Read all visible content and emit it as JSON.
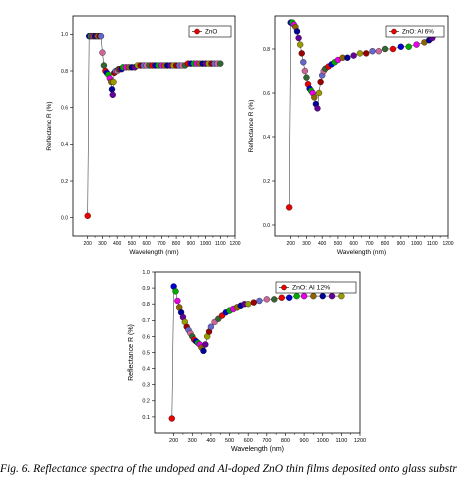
{
  "caption": "Fig. 6. Reflectance spectra of the undoped and Al-doped ZnO thin films deposited onto glass substr",
  "chart_data": [
    {
      "type": "scatter",
      "title": "",
      "legend": "ZnO",
      "legend_position": "top-right",
      "xlabel": "Wavelength (nm)",
      "ylabel": "Reflectanc R (%)",
      "xlim": [
        100,
        1200
      ],
      "ylim": [
        -0.1,
        1.1
      ],
      "xticks": [
        200,
        300,
        400,
        500,
        600,
        700,
        800,
        900,
        1000,
        1100,
        1200
      ],
      "yticks": [
        0.0,
        0.2,
        0.4,
        0.6,
        0.8,
        1.0
      ],
      "ytick_labels": [
        "0.0",
        "0.2",
        "0.4",
        "0.6",
        "0.8",
        "1.0"
      ],
      "grid": false,
      "marker_colors": [
        "#e60000",
        "#0000cc",
        "#00aa00",
        "#e600e6",
        "#8c6400",
        "#000099",
        "#660099",
        "#999900",
        "#990000",
        "#6666cc",
        "#cc6699",
        "#336633"
      ],
      "series": [
        {
          "x": [
            200,
            210,
            220,
            230,
            240,
            250,
            260,
            270,
            280,
            290,
            300,
            310,
            320,
            330,
            340,
            350,
            360,
            365,
            370,
            375,
            380,
            390,
            400,
            410,
            420,
            430,
            440,
            460,
            480,
            500,
            520,
            540,
            560,
            580,
            600,
            620,
            640,
            660,
            680,
            700,
            720,
            740,
            760,
            780,
            800,
            820,
            840,
            860,
            880,
            900,
            920,
            940,
            960,
            980,
            1000,
            1020,
            1040,
            1060,
            1080,
            1100
          ],
          "y": [
            0.01,
            0.99,
            0.99,
            0.99,
            0.99,
            0.99,
            0.99,
            0.99,
            0.99,
            0.99,
            0.9,
            0.83,
            0.8,
            0.79,
            0.78,
            0.76,
            0.74,
            0.7,
            0.67,
            0.74,
            0.79,
            0.8,
            0.8,
            0.81,
            0.81,
            0.81,
            0.82,
            0.82,
            0.82,
            0.82,
            0.82,
            0.83,
            0.83,
            0.83,
            0.83,
            0.83,
            0.83,
            0.83,
            0.83,
            0.83,
            0.83,
            0.83,
            0.83,
            0.83,
            0.83,
            0.83,
            0.83,
            0.83,
            0.84,
            0.84,
            0.84,
            0.84,
            0.84,
            0.84,
            0.84,
            0.84,
            0.84,
            0.84,
            0.84,
            0.84
          ]
        }
      ]
    },
    {
      "type": "scatter",
      "title": "",
      "legend": "ZnO: Al 6%",
      "legend_position": "top-right",
      "xlabel": "Wavelength (nm)",
      "ylabel": "Reflectance R (%)",
      "xlim": [
        100,
        1200
      ],
      "ylim": [
        -0.05,
        0.95
      ],
      "xticks": [
        200,
        300,
        400,
        500,
        600,
        700,
        800,
        900,
        1000,
        1100,
        1200
      ],
      "yticks": [
        0.0,
        0.2,
        0.4,
        0.6,
        0.8
      ],
      "ytick_labels": [
        "0.0",
        "0.2",
        "0.4",
        "0.6",
        "0.8"
      ],
      "grid": false,
      "marker_colors": [
        "#e60000",
        "#0000cc",
        "#00aa00",
        "#e600e6",
        "#8c6400",
        "#000099",
        "#660099",
        "#999900",
        "#990000",
        "#6666cc",
        "#cc6699",
        "#336633"
      ],
      "series": [
        {
          "x": [
            190,
            200,
            210,
            220,
            230,
            240,
            250,
            260,
            270,
            280,
            290,
            300,
            310,
            320,
            330,
            340,
            350,
            360,
            370,
            380,
            390,
            400,
            410,
            420,
            440,
            460,
            480,
            500,
            530,
            560,
            600,
            640,
            680,
            720,
            760,
            800,
            850,
            900,
            950,
            1000,
            1050,
            1080,
            1100
          ],
          "y": [
            0.08,
            0.92,
            0.92,
            0.91,
            0.9,
            0.88,
            0.85,
            0.82,
            0.78,
            0.74,
            0.7,
            0.67,
            0.64,
            0.62,
            0.61,
            0.6,
            0.58,
            0.55,
            0.53,
            0.6,
            0.65,
            0.68,
            0.7,
            0.71,
            0.72,
            0.73,
            0.74,
            0.75,
            0.76,
            0.76,
            0.77,
            0.78,
            0.78,
            0.79,
            0.79,
            0.8,
            0.8,
            0.81,
            0.81,
            0.82,
            0.83,
            0.84,
            0.85
          ]
        }
      ]
    },
    {
      "type": "scatter",
      "title": "",
      "legend": "ZnO: Al 12%",
      "legend_position": "top-right",
      "xlabel": "Wavelength (nm)",
      "ylabel": "Reflectance R (%)",
      "xlim": [
        100,
        1200
      ],
      "ylim": [
        0,
        1.0
      ],
      "xticks": [
        200,
        300,
        400,
        500,
        600,
        700,
        800,
        900,
        1000,
        1100,
        1200
      ],
      "yticks": [
        0.1,
        0.2,
        0.3,
        0.4,
        0.5,
        0.6,
        0.7,
        0.8,
        0.9,
        1.0
      ],
      "ytick_labels": [
        "0.1",
        "0.2",
        "0.3",
        "0.4",
        "0.5",
        "0.6",
        "0.7",
        "0.8",
        "0.9",
        "1.0"
      ],
      "grid": false,
      "marker_colors": [
        "#e60000",
        "#0000cc",
        "#00aa00",
        "#e600e6",
        "#8c6400",
        "#000099",
        "#660099",
        "#999900",
        "#990000",
        "#6666cc",
        "#cc6699",
        "#336633"
      ],
      "series": [
        {
          "x": [
            190,
            200,
            210,
            220,
            230,
            240,
            250,
            260,
            270,
            280,
            290,
            300,
            310,
            320,
            330,
            340,
            350,
            360,
            370,
            380,
            390,
            400,
            420,
            440,
            460,
            480,
            500,
            520,
            540,
            560,
            580,
            600,
            630,
            660,
            700,
            740,
            780,
            820,
            860,
            900,
            950,
            1000,
            1050,
            1100
          ],
          "y": [
            0.09,
            0.91,
            0.88,
            0.82,
            0.78,
            0.75,
            0.72,
            0.69,
            0.66,
            0.64,
            0.62,
            0.6,
            0.58,
            0.57,
            0.56,
            0.55,
            0.53,
            0.51,
            0.55,
            0.6,
            0.63,
            0.66,
            0.69,
            0.71,
            0.73,
            0.75,
            0.76,
            0.77,
            0.78,
            0.79,
            0.8,
            0.8,
            0.81,
            0.82,
            0.83,
            0.83,
            0.84,
            0.84,
            0.85,
            0.85,
            0.85,
            0.85,
            0.85,
            0.85
          ]
        }
      ]
    }
  ]
}
